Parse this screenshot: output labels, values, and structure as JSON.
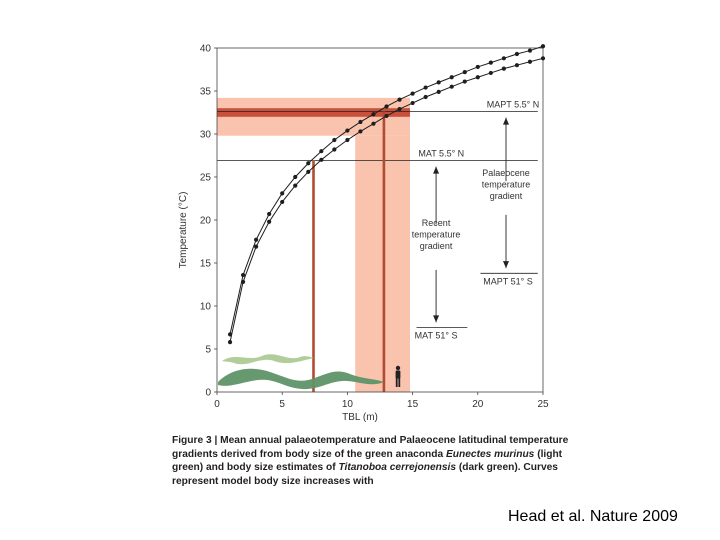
{
  "chart_data": {
    "type": "line",
    "xlabel": "TBL (m)",
    "ylabel": "Temperature (°C)",
    "xlim": [
      0,
      25
    ],
    "ylim": [
      0,
      40
    ],
    "xticks": [
      0,
      5,
      10,
      15,
      20,
      25
    ],
    "yticks": [
      0,
      5,
      10,
      15,
      20,
      25,
      30,
      35,
      40
    ],
    "series": [
      {
        "name": "upper curve",
        "x": [
          1,
          2,
          3,
          4,
          5,
          6,
          7,
          8,
          9,
          10,
          11,
          12,
          13,
          14,
          15,
          16,
          17,
          18,
          19,
          20,
          21,
          22,
          23,
          24,
          25
        ],
        "y": [
          6.7,
          13.6,
          17.7,
          20.7,
          23.1,
          25.0,
          26.6,
          28.0,
          29.3,
          30.4,
          31.4,
          32.3,
          33.2,
          34.0,
          34.7,
          35.4,
          36.0,
          36.6,
          37.2,
          37.8,
          38.3,
          38.8,
          39.3,
          39.7,
          40.2
        ]
      },
      {
        "name": "lower curve",
        "x": [
          1,
          2,
          3,
          4,
          5,
          6,
          7,
          8,
          9,
          10,
          11,
          12,
          13,
          14,
          15,
          16,
          17,
          18,
          19,
          20,
          21,
          22,
          23,
          24,
          25
        ],
        "y": [
          5.8,
          12.8,
          16.9,
          19.8,
          22.1,
          24.0,
          25.6,
          27.0,
          28.2,
          29.3,
          30.3,
          31.2,
          32.1,
          32.9,
          33.6,
          34.3,
          34.9,
          35.5,
          36.1,
          36.6,
          37.1,
          37.6,
          38.0,
          38.4,
          38.8
        ]
      }
    ],
    "bands": {
      "light_horizontal": [
        29.8,
        34.2
      ],
      "dark_horizontal": [
        32.0,
        33.0
      ],
      "light_vertical": [
        10.6,
        14.8
      ]
    },
    "reference_lines": {
      "mapt_temp": 32.6,
      "mat_temp": 26.9,
      "anaconda_tbl": 7.4,
      "titanoboa_tbl": 12.8
    },
    "annotations": {
      "mapt_north": "MAPT 5.5° N",
      "mat_north": "MAT 5.5° N",
      "palaeocene_gradient": [
        "Palaeocene",
        "temperature",
        "gradient"
      ],
      "recent_gradient": [
        "Recent",
        "temperature",
        "gradient"
      ],
      "mapt_south": "MAPT 51° S",
      "mat_south": "MAT 51° S"
    }
  },
  "caption": {
    "lead": "Figure 3 | Mean annual palaeotemperature and Palaeocene latitudinal temperature gradients derived from body size of the green anaconda",
    "species1": "Eunectes murinus",
    "mid1": "(light green) and body size estimates of",
    "species2": "Titanoboa cerrejonensis",
    "mid2": "(dark green). Curves represent model body size increases with"
  },
  "credit": "Head et al. Nature 2009",
  "colors": {
    "light_band": "#f9c3ad",
    "dark_band": "#c9503a",
    "vline": "#b34a32",
    "light_snake": "#a8c98f",
    "dark_snake": "#5e9467",
    "curve": "#1e1e1e"
  }
}
